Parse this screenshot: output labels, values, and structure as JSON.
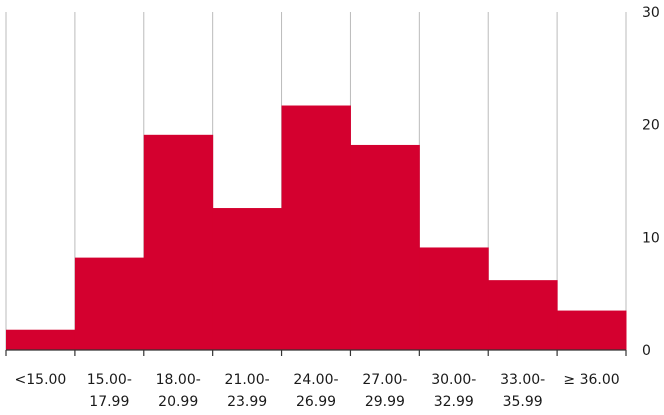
{
  "chart_data": {
    "type": "bar",
    "title": "",
    "xlabel": "",
    "ylabel": "",
    "categories": [
      [
        "<15.00"
      ],
      [
        "15.00-",
        "17.99"
      ],
      [
        "18.00-",
        "20.99"
      ],
      [
        "21.00-",
        "23.99"
      ],
      [
        "24.00-",
        "26.99"
      ],
      [
        "27.00-",
        "29.99"
      ],
      [
        "30.00-",
        "32.99"
      ],
      [
        "33.00-",
        "35.99"
      ],
      [
        "≥ 36.00"
      ]
    ],
    "values": [
      1.8,
      8.2,
      19.1,
      12.6,
      21.7,
      18.2,
      9.1,
      6.2,
      3.5
    ],
    "ylim": [
      0,
      30
    ],
    "yticks": [
      "0",
      "10",
      "20",
      "30"
    ],
    "y_axis_position": "right",
    "grid": "vertical",
    "bar_color": "#d4002f",
    "grid_color": "#bbbbbb"
  }
}
